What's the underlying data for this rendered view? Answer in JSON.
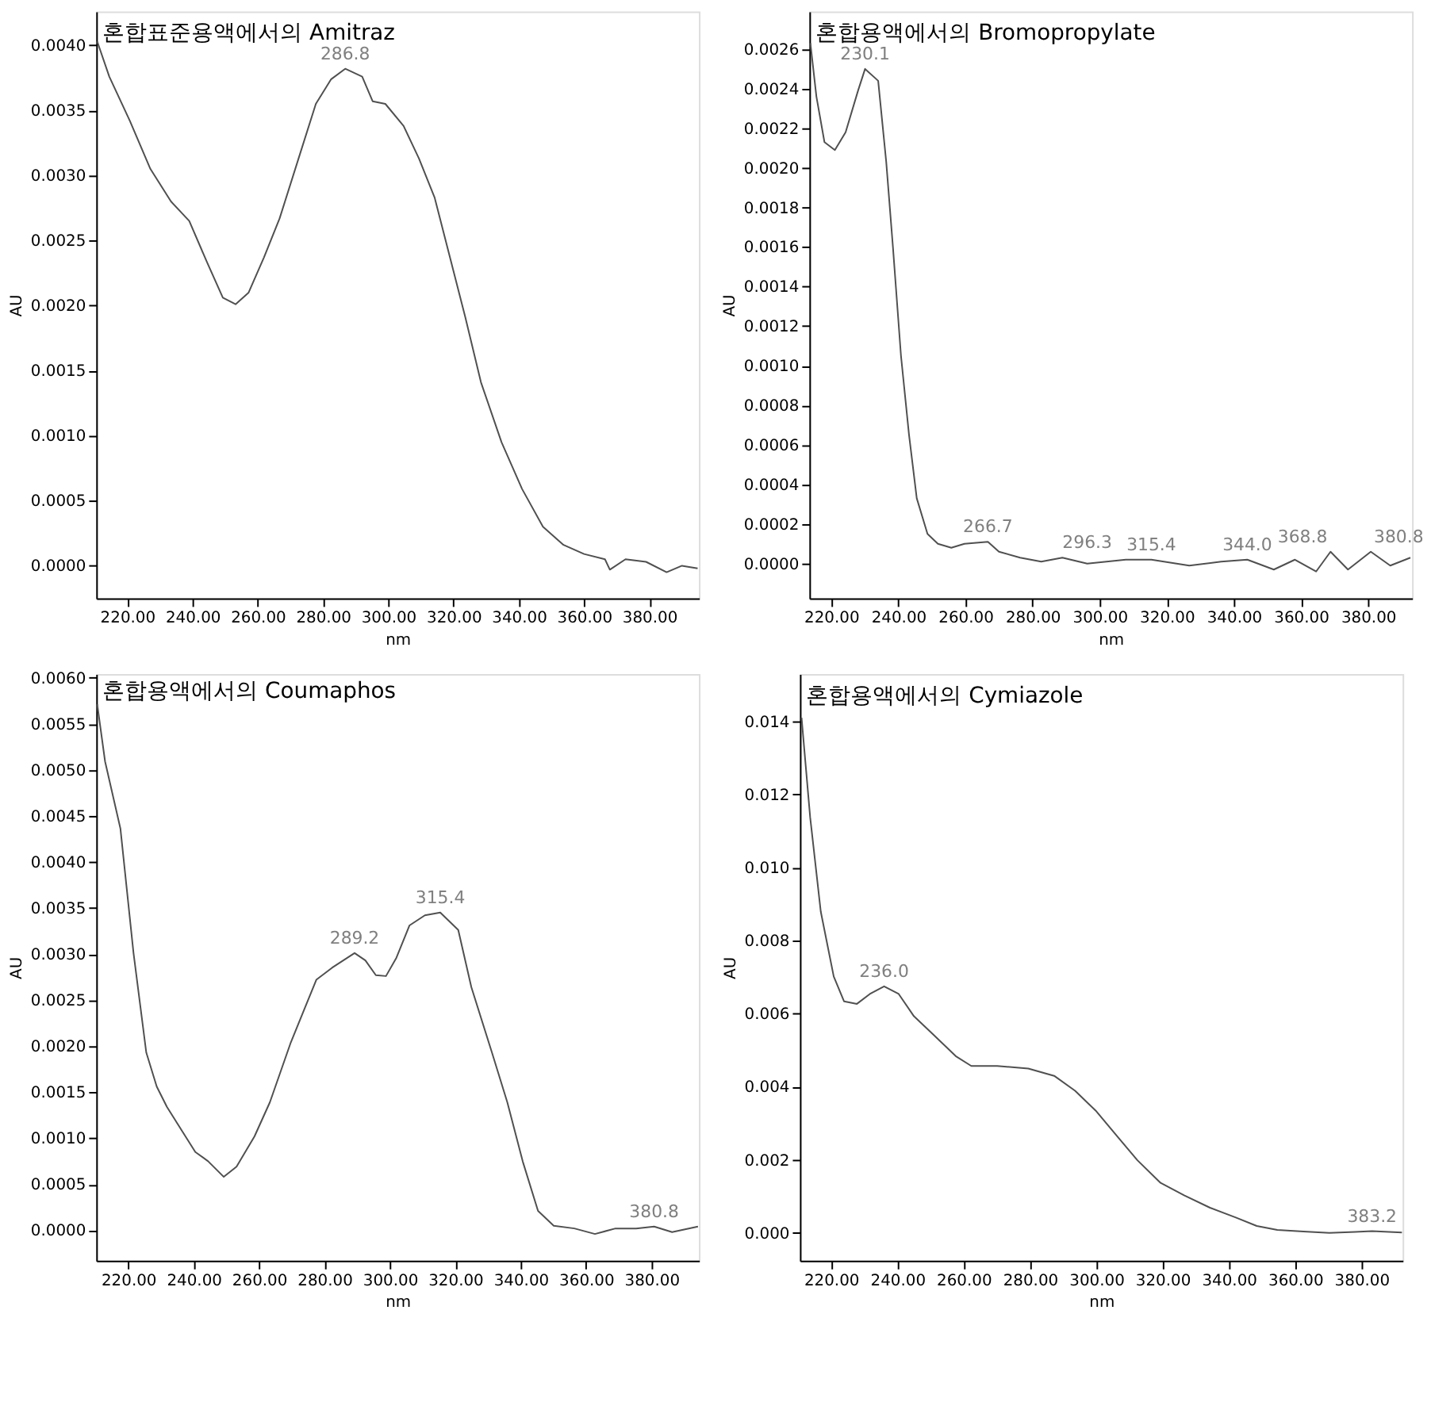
{
  "chart_data": [
    {
      "type": "line",
      "title": "혼합표준용액에서의 Amitraz",
      "xlabel": "nm",
      "ylabel": "AU",
      "color": "#505050",
      "x": [
        210.8,
        214.5,
        220.8,
        227.1,
        233.4,
        239,
        244.5,
        249.3,
        253.2,
        257.2,
        261.9,
        266.7,
        273,
        277.8,
        282.5,
        286.8,
        292,
        295.2,
        299.1,
        304.7,
        309.4,
        314.2,
        318.9,
        323.6,
        328.4,
        334.7,
        341,
        347.4,
        353.7,
        360,
        366.4,
        367.9,
        372.7,
        379,
        385.3,
        390,
        394.8
      ],
      "values": [
        0.00403,
        0.00376,
        0.00342,
        0.00305,
        0.0028,
        0.00265,
        0.00233,
        0.00206,
        0.00201,
        0.0021,
        0.00237,
        0.00267,
        0.00317,
        0.00355,
        0.00374,
        0.00382,
        0.00376,
        0.00357,
        0.00355,
        0.00338,
        0.00313,
        0.00283,
        0.00237,
        0.00191,
        0.00141,
        0.00095,
        0.00059,
        0.0003,
        0.00016,
        9e-05,
        5e-05,
        -3e-05,
        5e-05,
        3e-05,
        -5e-05,
        0,
        -2e-05
      ],
      "xlim": [
        210.5,
        395.2
      ],
      "ylim": [
        -0.00025,
        0.00426
      ],
      "xticks": [
        {
          "value": 220,
          "label": "220.00"
        },
        {
          "value": 240,
          "label": "240.00"
        },
        {
          "value": 260,
          "label": "260.00"
        },
        {
          "value": 280,
          "label": "280.00"
        },
        {
          "value": 300,
          "label": "300.00"
        },
        {
          "value": 320,
          "label": "320.00"
        },
        {
          "value": 340,
          "label": "340.00"
        },
        {
          "value": 360,
          "label": "360.00"
        },
        {
          "value": 380,
          "label": "380.00"
        }
      ],
      "yticks": [
        {
          "value": 0,
          "label": "0.0000"
        },
        {
          "value": 0.0005,
          "label": "0.0005"
        },
        {
          "value": 0.001,
          "label": "0.0010"
        },
        {
          "value": 0.0015,
          "label": "0.0015"
        },
        {
          "value": 0.002,
          "label": "0.0020"
        },
        {
          "value": 0.0025,
          "label": "0.0025"
        },
        {
          "value": 0.003,
          "label": "0.0030"
        },
        {
          "value": 0.0035,
          "label": "0.0035"
        },
        {
          "value": 0.004,
          "label": "0.0040"
        }
      ],
      "annotations": [
        {
          "text": "286.8",
          "x": 286.8,
          "y": 0.00382
        }
      ],
      "grid": false
    },
    {
      "type": "line",
      "title": "혼합용액에서의 Bromopropylate",
      "xlabel": "nm",
      "ylabel": "AU",
      "color": "#505050",
      "x": [
        213.8,
        215.6,
        218,
        221.1,
        224.3,
        228,
        230.1,
        234,
        236.4,
        238.4,
        240.8,
        243.2,
        245.5,
        248.7,
        251.8,
        255.8,
        259.7,
        266.7,
        270,
        276.3,
        282.6,
        288.9,
        296.3,
        307.8,
        315.4,
        326.7,
        336.2,
        344,
        351.9,
        358.2,
        364.5,
        368.8,
        374,
        380.8,
        386.6,
        392.6
      ],
      "values": [
        0.00263,
        0.00236,
        0.00213,
        0.00209,
        0.00218,
        0.00239,
        0.0025,
        0.00244,
        0.00203,
        0.0016,
        0.00105,
        0.00065,
        0.00033,
        0.00015,
        0.0001,
        8e-05,
        0.0001,
        0.00011,
        6e-05,
        3e-05,
        1e-05,
        3e-05,
        0,
        2e-05,
        2e-05,
        -1e-05,
        1e-05,
        2e-05,
        -3e-05,
        2e-05,
        -4e-05,
        6e-05,
        -3e-05,
        6e-05,
        -1e-05,
        3e-05
      ],
      "xlim": [
        213.5,
        393.1
      ],
      "ylim": [
        -0.000175,
        0.00279
      ],
      "xticks": [
        {
          "value": 220,
          "label": "220.00"
        },
        {
          "value": 240,
          "label": "240.00"
        },
        {
          "value": 260,
          "label": "260.00"
        },
        {
          "value": 280,
          "label": "280.00"
        },
        {
          "value": 300,
          "label": "300.00"
        },
        {
          "value": 320,
          "label": "320.00"
        },
        {
          "value": 340,
          "label": "340.00"
        },
        {
          "value": 360,
          "label": "360.00"
        },
        {
          "value": 380,
          "label": "380.00"
        }
      ],
      "yticks": [
        {
          "value": 0,
          "label": "0.0000"
        },
        {
          "value": 0.0002,
          "label": "0.0002"
        },
        {
          "value": 0.0004,
          "label": "0.0004"
        },
        {
          "value": 0.0006,
          "label": "0.0006"
        },
        {
          "value": 0.0008,
          "label": "0.0008"
        },
        {
          "value": 0.001,
          "label": "0.0010"
        },
        {
          "value": 0.0012,
          "label": "0.0012"
        },
        {
          "value": 0.0014,
          "label": "0.0014"
        },
        {
          "value": 0.0016,
          "label": "0.0016"
        },
        {
          "value": 0.0018,
          "label": "0.0018"
        },
        {
          "value": 0.002,
          "label": "0.0020"
        },
        {
          "value": 0.0022,
          "label": "0.0022"
        },
        {
          "value": 0.0024,
          "label": "0.0024"
        },
        {
          "value": 0.0026,
          "label": "0.0026"
        }
      ],
      "annotations": [
        {
          "text": "230.1",
          "x": 230.1,
          "y": 0.0025
        },
        {
          "text": "266.7",
          "x": 266.7,
          "y": 0.00011
        },
        {
          "text": "296.3",
          "x": 296.3,
          "y": 3e-05
        },
        {
          "text": "315.4",
          "x": 315.4,
          "y": 2e-05
        },
        {
          "text": "344.0",
          "x": 344.0,
          "y": 2e-05
        },
        {
          "text": "368.8",
          "x": 368.8,
          "y": 6e-05
        },
        {
          "text": "380.8",
          "x": 380.8,
          "y": 6e-05
        }
      ],
      "grid": false
    },
    {
      "type": "line",
      "title": "혼합용액에서의 Coumaphos",
      "xlabel": "nm",
      "ylabel": "AU",
      "color": "#505050",
      "x": [
        210.5,
        212.9,
        217.6,
        221.6,
        225.5,
        228.7,
        231.8,
        236.6,
        240.5,
        244.4,
        249.2,
        253.1,
        258.6,
        263.3,
        269.7,
        277.5,
        282.3,
        289.2,
        292.5,
        295.7,
        298.8,
        302,
        306,
        310.7,
        315.4,
        320.9,
        324.9,
        331.2,
        335.9,
        340.6,
        345.3,
        350.1,
        356.4,
        362.7,
        369,
        375.3,
        380.8,
        386.3,
        394.2
      ],
      "values": [
        0.00571,
        0.00509,
        0.00436,
        0.00301,
        0.00193,
        0.00156,
        0.00134,
        0.00107,
        0.00085,
        0.00075,
        0.00058,
        0.00069,
        0.00102,
        0.00139,
        0.00204,
        0.00272,
        0.00285,
        0.00301,
        0.00293,
        0.00277,
        0.00276,
        0.00296,
        0.00331,
        0.00342,
        0.00345,
        0.00326,
        0.00264,
        0.00193,
        0.00139,
        0.00075,
        0.00021,
        5e-05,
        2e-05,
        -4e-05,
        2e-05,
        2e-05,
        4e-05,
        -2e-05,
        4e-05
      ],
      "xlim": [
        210.2,
        394.5
      ],
      "ylim": [
        -0.00033,
        0.00604
      ],
      "xticks": [
        {
          "value": 220,
          "label": "220.00"
        },
        {
          "value": 240,
          "label": "240.00"
        },
        {
          "value": 260,
          "label": "260.00"
        },
        {
          "value": 280,
          "label": "280.00"
        },
        {
          "value": 300,
          "label": "300.00"
        },
        {
          "value": 320,
          "label": "320.00"
        },
        {
          "value": 340,
          "label": "340.00"
        },
        {
          "value": 360,
          "label": "360.00"
        },
        {
          "value": 380,
          "label": "380.00"
        }
      ],
      "yticks": [
        {
          "value": 0,
          "label": "0.0000"
        },
        {
          "value": 0.0005,
          "label": "0.0005"
        },
        {
          "value": 0.001,
          "label": "0.0010"
        },
        {
          "value": 0.0015,
          "label": "0.0015"
        },
        {
          "value": 0.002,
          "label": "0.0020"
        },
        {
          "value": 0.0025,
          "label": "0.0025"
        },
        {
          "value": 0.003,
          "label": "0.0030"
        },
        {
          "value": 0.0035,
          "label": "0.0035"
        },
        {
          "value": 0.004,
          "label": "0.0040"
        },
        {
          "value": 0.0045,
          "label": "0.0045"
        },
        {
          "value": 0.005,
          "label": "0.0050"
        },
        {
          "value": 0.0055,
          "label": "0.0055"
        },
        {
          "value": 0.006,
          "label": "0.0060"
        }
      ],
      "annotations": [
        {
          "text": "289.2",
          "x": 289.2,
          "y": 0.00301
        },
        {
          "text": "315.4",
          "x": 315.4,
          "y": 0.00345
        },
        {
          "text": "380.8",
          "x": 380.8,
          "y": 4e-05
        }
      ],
      "grid": false
    },
    {
      "type": "line",
      "title": "혼합용액에서의 Cymiazole",
      "xlabel": "nm",
      "ylabel": "AU",
      "color": "#505050",
      "x": [
        211.1,
        213.7,
        216.9,
        220.8,
        223.9,
        227.8,
        231.7,
        236.0,
        240.4,
        245,
        251.3,
        257.6,
        262.3,
        270.1,
        279.5,
        287.3,
        293.6,
        299.8,
        306.1,
        312.4,
        319.4,
        326.5,
        334.3,
        342.1,
        348.4,
        354.6,
        362.5,
        370.3,
        378.1,
        383.2,
        392.2
      ],
      "values": [
        0.0141,
        0.01137,
        0.00879,
        0.00702,
        0.00634,
        0.00627,
        0.00654,
        0.00675,
        0.00654,
        0.00593,
        0.00539,
        0.00484,
        0.00457,
        0.00457,
        0.0045,
        0.0043,
        0.00389,
        0.00335,
        0.00267,
        0.00199,
        0.00137,
        0.00103,
        0.00069,
        0.00042,
        0.00019,
        8e-05,
        4e-05,
        0,
        3e-05,
        5e-05,
        1e-05
      ],
      "xlim": [
        210.6,
        392.4
      ],
      "ylim": [
        -0.00076,
        0.0153
      ],
      "xticks": [
        {
          "value": 220,
          "label": "220.00"
        },
        {
          "value": 240,
          "label": "240.00"
        },
        {
          "value": 260,
          "label": "260.00"
        },
        {
          "value": 280,
          "label": "280.00"
        },
        {
          "value": 300,
          "label": "300.00"
        },
        {
          "value": 320,
          "label": "320.00"
        },
        {
          "value": 340,
          "label": "340.00"
        },
        {
          "value": 360,
          "label": "360.00"
        },
        {
          "value": 380,
          "label": "380.00"
        }
      ],
      "yticks": [
        {
          "value": 0,
          "label": "0.000"
        },
        {
          "value": 0.002,
          "label": "0.002"
        },
        {
          "value": 0.004,
          "label": "0.004"
        },
        {
          "value": 0.006,
          "label": "0.006"
        },
        {
          "value": 0.008,
          "label": "0.008"
        },
        {
          "value": 0.01,
          "label": "0.010"
        },
        {
          "value": 0.012,
          "label": "0.012"
        },
        {
          "value": 0.014,
          "label": "0.014"
        }
      ],
      "annotations": [
        {
          "text": "236.0",
          "x": 236.0,
          "y": 0.00675
        },
        {
          "text": "383.2",
          "x": 383.2,
          "y": 5e-05
        }
      ],
      "grid": false
    }
  ]
}
